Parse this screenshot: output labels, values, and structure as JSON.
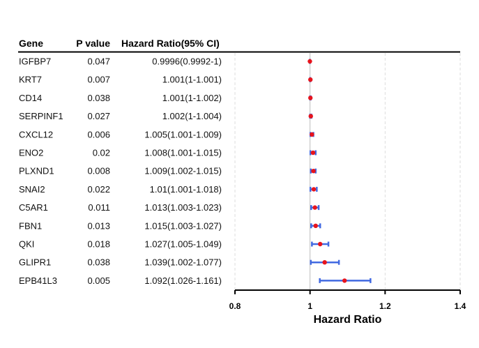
{
  "table": {
    "headers": {
      "gene": "Gene",
      "pvalue": "P value",
      "hr": "Hazard Ratio(95% CI)"
    }
  },
  "chart_data": {
    "type": "forest",
    "xlabel": "Hazard Ratio",
    "xlim": [
      0.8,
      1.4
    ],
    "xticks": [
      0.8,
      1,
      1.2,
      1.4
    ],
    "xtick_labels": [
      "0.8",
      "1",
      "1.2",
      "1.4"
    ],
    "reference_line": 1,
    "grid": "vertical dashed",
    "colors": {
      "point": "#e8141c",
      "ci": "#4169e1",
      "reference": "#bbbbbb",
      "grid": "#dddddd"
    },
    "rows": [
      {
        "gene": "IGFBP7",
        "p": "0.047",
        "label": "0.9996(0.9992-1)",
        "hr": 0.9996,
        "lo": 0.9992,
        "hi": 1.0
      },
      {
        "gene": "KRT7",
        "p": "0.007",
        "label": "1.001(1-1.001)",
        "hr": 1.001,
        "lo": 1.0,
        "hi": 1.001
      },
      {
        "gene": "CD14",
        "p": "0.038",
        "label": "1.001(1-1.002)",
        "hr": 1.001,
        "lo": 1.0,
        "hi": 1.002
      },
      {
        "gene": "SERPINF1",
        "p": "0.027",
        "label": "1.002(1-1.004)",
        "hr": 1.002,
        "lo": 1.0,
        "hi": 1.004
      },
      {
        "gene": "CXCL12",
        "p": "0.006",
        "label": "1.005(1.001-1.009)",
        "hr": 1.005,
        "lo": 1.001,
        "hi": 1.009
      },
      {
        "gene": "ENO2",
        "p": "0.02",
        "label": "1.008(1.001-1.015)",
        "hr": 1.008,
        "lo": 1.001,
        "hi": 1.015
      },
      {
        "gene": "PLXND1",
        "p": "0.008",
        "label": "1.009(1.002-1.015)",
        "hr": 1.009,
        "lo": 1.002,
        "hi": 1.015
      },
      {
        "gene": "SNAI2",
        "p": "0.022",
        "label": "1.01(1.001-1.018)",
        "hr": 1.01,
        "lo": 1.001,
        "hi": 1.018
      },
      {
        "gene": "C5AR1",
        "p": "0.011",
        "label": "1.013(1.003-1.023)",
        "hr": 1.013,
        "lo": 1.003,
        "hi": 1.023
      },
      {
        "gene": "FBN1",
        "p": "0.013",
        "label": "1.015(1.003-1.027)",
        "hr": 1.015,
        "lo": 1.003,
        "hi": 1.027
      },
      {
        "gene": "QKI",
        "p": "0.018",
        "label": "1.027(1.005-1.049)",
        "hr": 1.027,
        "lo": 1.005,
        "hi": 1.049
      },
      {
        "gene": "GLIPR1",
        "p": "0.038",
        "label": "1.039(1.002-1.077)",
        "hr": 1.039,
        "lo": 1.002,
        "hi": 1.077
      },
      {
        "gene": "EPB41L3",
        "p": "0.005",
        "label": "1.092(1.026-1.161)",
        "hr": 1.092,
        "lo": 1.026,
        "hi": 1.161
      }
    ]
  }
}
